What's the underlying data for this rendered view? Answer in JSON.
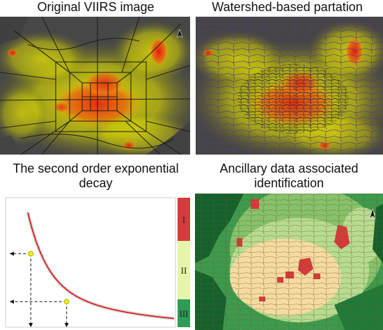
{
  "panels": {
    "top_left": {
      "title": "Original VIIRS image"
    },
    "top_right": {
      "title": "Watershed-based partation"
    },
    "bottom_left": {
      "title_line1": "The second order exponential",
      "title_line2": "decay",
      "classes": [
        "I",
        "II",
        "III"
      ]
    },
    "bottom_right": {
      "title_line1": "Ancillary data associated",
      "title_line2": "identification"
    }
  },
  "colors": {
    "dark_bg": "#4a4a4a",
    "yellow": "#f2f200",
    "red": "#e61e1e",
    "class_I": "#d63a3a",
    "class_II": "#e6f5a8",
    "class_III": "#2e9b57",
    "curve": "#e01010",
    "map_dark_green": "#14612b",
    "map_green": "#3d9b4c",
    "map_light_green": "#b8dc8f",
    "map_tan": "#f5dba0"
  },
  "chart_data": {
    "type": "line",
    "title": "The second order exponential decay",
    "xlabel": "",
    "ylabel": "",
    "x": [
      0,
      1,
      2,
      3,
      4,
      5,
      6,
      7,
      8,
      9,
      10
    ],
    "y": [
      1.0,
      0.62,
      0.42,
      0.31,
      0.23,
      0.17,
      0.13,
      0.1,
      0.08,
      0.06,
      0.05
    ],
    "marked_points": [
      {
        "x": 0.2,
        "y": 0.62
      },
      {
        "x": 2.65,
        "y": 0.2
      }
    ],
    "classes": [
      "I",
      "II",
      "III"
    ],
    "grid": false
  }
}
